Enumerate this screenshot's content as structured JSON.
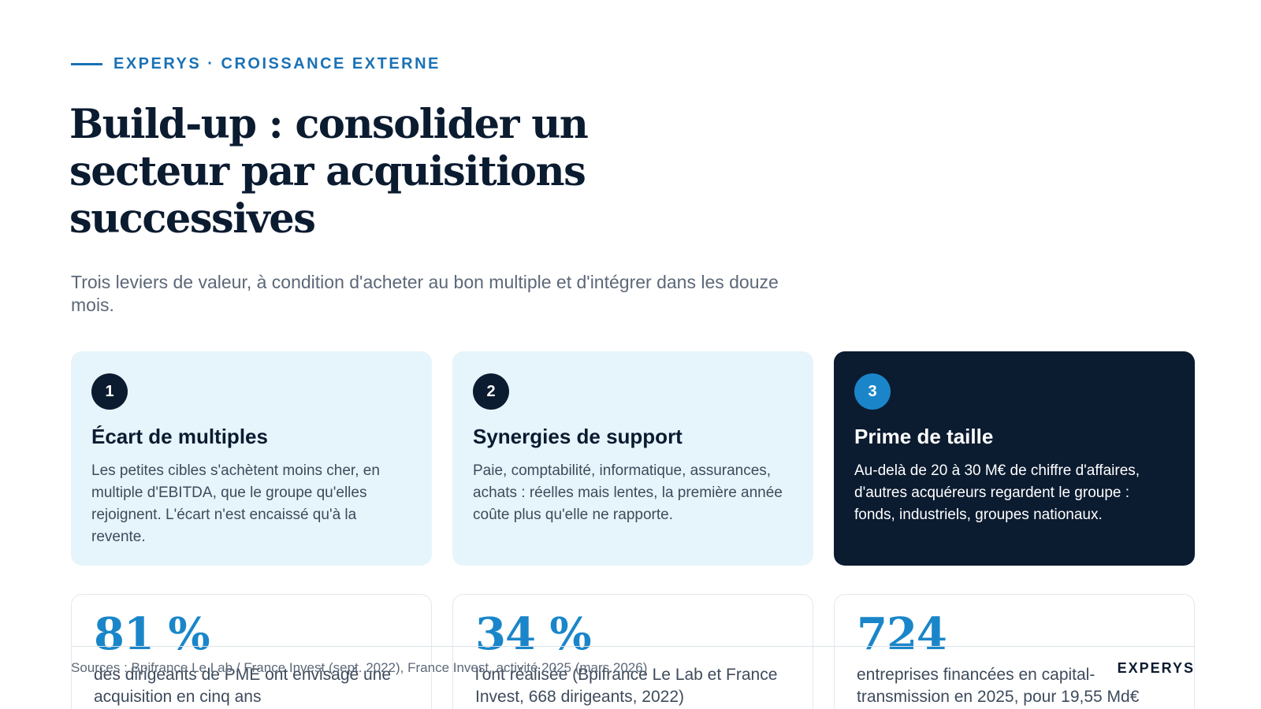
{
  "header": {
    "eyebrow": "EXPERYS · CROISSANCE EXTERNE",
    "title": "Build-up : consolider un secteur par acquisitions successives",
    "subtitle": "Trois leviers de valeur, à condition d'acheter au bon multiple et d'intégrer dans les douze mois."
  },
  "cards": [
    {
      "number": "1",
      "title": "Écart de multiples",
      "body": "Les petites cibles s'achètent moins cher, en multiple d'EBITDA, que le groupe qu'elles rejoignent. L'écart n'est encaissé qu'à la revente."
    },
    {
      "number": "2",
      "title": "Synergies de support",
      "body": "Paie, comptabilité, informatique, assurances, achats : réelles mais lentes, la première année coûte plus qu'elle ne rapporte."
    },
    {
      "number": "3",
      "title": "Prime de taille",
      "body": "Au-delà de 20 à 30 M€ de chiffre d'affaires, d'autres acquéreurs regardent le groupe : fonds, industriels, groupes nationaux."
    }
  ],
  "stats": [
    {
      "value": "81 %",
      "label": "des dirigeants de PME ont envisagé une acquisition en cinq ans"
    },
    {
      "value": "34 %",
      "label": "l'ont réalisée (Bpifrance Le Lab et France Invest, 668 dirigeants, 2022)"
    },
    {
      "value": "724",
      "label": "entreprises financées en capital-transmission en 2025, pour 19,55 Md€"
    }
  ],
  "footer": {
    "sources": "Sources : Bpifrance Le Lab / France Invest (sept. 2022), France Invest, activité 2025 (mars 2026)",
    "brand": "EXPERYS"
  },
  "colors": {
    "accent": "#1a72b5",
    "navy": "#0b1b30",
    "light_card": "#e6f5fb",
    "stat_blue": "#1a86c9"
  }
}
